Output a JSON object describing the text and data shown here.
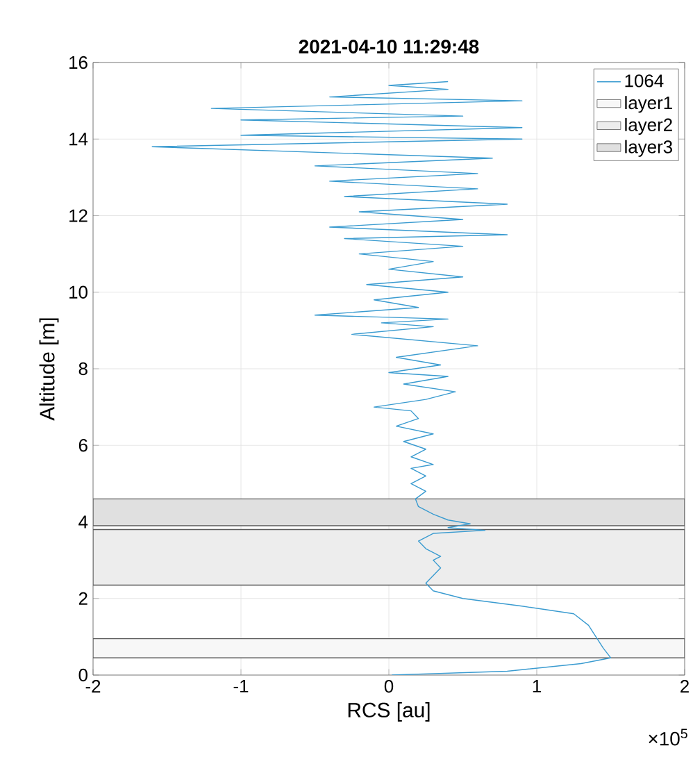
{
  "chart_data": {
    "type": "line",
    "title": "2021-04-10 11:29:48",
    "xlabel": "RCS [au]",
    "ylabel": "Altitude [m]",
    "annotations": [
      "×10$^{5}$"
    ],
    "xlim": [
      -2,
      2
    ],
    "xticks": [
      -2,
      -1,
      0,
      1,
      2
    ],
    "ylim": [
      0,
      16
    ],
    "yticks": [
      0,
      2,
      4,
      6,
      8,
      10,
      12,
      14,
      16
    ],
    "grid": true,
    "legend": "top right",
    "marker": "none",
    "line_style": "solid",
    "series": [
      {
        "name": "1064",
        "color": "#3a9bd0",
        "x": [
          0.02,
          0.8,
          1.3,
          1.5,
          1.45,
          1.4,
          1.35,
          1.25,
          0.9,
          0.5,
          0.3,
          0.25,
          0.3,
          0.35,
          0.3,
          0.35,
          0.25,
          0.2,
          0.3,
          0.65,
          0.4,
          0.55,
          0.4,
          0.3,
          0.2,
          0.18,
          0.25,
          0.15,
          0.25,
          0.15,
          0.3,
          0.15,
          0.25,
          0.1,
          0.3,
          0.05,
          0.2,
          0.15,
          -0.1,
          0.25,
          0.45,
          0.1,
          0.4,
          0.0,
          0.35,
          0.05,
          0.6,
          -0.25,
          0.3,
          -0.05,
          0.4,
          -0.5,
          0.2,
          -0.1,
          0.4,
          -0.15,
          0.5,
          0.0,
          0.3,
          -0.2,
          0.5,
          -0.3,
          0.8,
          -0.4,
          0.5,
          -0.2,
          0.8,
          -0.3,
          0.6,
          -0.4,
          0.6,
          -0.5,
          0.7,
          -1.6,
          0.9,
          -1.0,
          0.9,
          -1.0,
          0.5,
          -1.2,
          0.9,
          -0.4,
          0.4,
          0.0,
          0.4
        ],
        "values": [
          0.0,
          0.1,
          0.3,
          0.45,
          0.7,
          1.0,
          1.3,
          1.6,
          1.8,
          2.0,
          2.2,
          2.4,
          2.6,
          2.8,
          3.0,
          3.1,
          3.3,
          3.5,
          3.7,
          3.78,
          3.85,
          3.95,
          4.05,
          4.2,
          4.4,
          4.6,
          4.8,
          5.0,
          5.2,
          5.4,
          5.5,
          5.7,
          5.9,
          6.1,
          6.3,
          6.5,
          6.7,
          6.9,
          7.0,
          7.2,
          7.4,
          7.6,
          7.8,
          7.9,
          8.1,
          8.3,
          8.6,
          8.9,
          9.1,
          9.2,
          9.3,
          9.4,
          9.6,
          9.8,
          10.0,
          10.2,
          10.4,
          10.6,
          10.8,
          11.0,
          11.2,
          11.4,
          11.5,
          11.7,
          11.9,
          12.1,
          12.3,
          12.5,
          12.7,
          12.9,
          13.1,
          13.3,
          13.5,
          13.8,
          14.0,
          14.1,
          14.3,
          14.5,
          14.6,
          14.8,
          15.0,
          15.1,
          15.3,
          15.4,
          15.5
        ]
      }
    ],
    "bands": [
      {
        "axis": "y",
        "from": 0.45,
        "to": 0.95,
        "label": "layer1",
        "color": "#f7f7f7"
      },
      {
        "axis": "y",
        "from": 2.35,
        "to": 3.8,
        "label": "layer2",
        "color": "#ededed"
      },
      {
        "axis": "y",
        "from": 3.9,
        "to": 4.6,
        "label": "layer3",
        "color": "#e0e0e0"
      }
    ]
  }
}
